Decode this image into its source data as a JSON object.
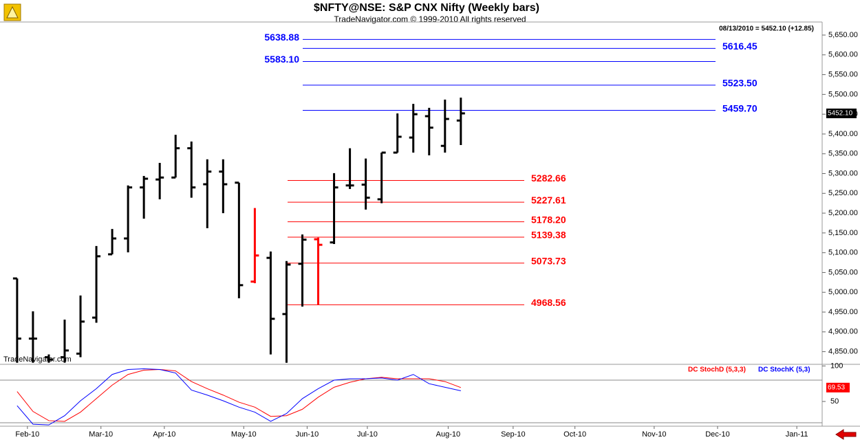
{
  "chart_data": {
    "type": "ohlc",
    "title": "$NFTY@NSE:  S&P CNX Nifty  (Weekly bars)",
    "subtitle": "TradeNavigator.com © 1999-2010 All rights reserved",
    "info": "08/13/2010 = 5452.10 (+12.85)",
    "watermark": "TradeNavigator.com",
    "last_price": {
      "value": 5452.1,
      "label": "5452.10"
    },
    "x": [
      0,
      1,
      2,
      3,
      4,
      5,
      6,
      7,
      8,
      9,
      10,
      11,
      12,
      13,
      14,
      15,
      16,
      17,
      18,
      19,
      20,
      21,
      22,
      23,
      24,
      25,
      26,
      27,
      28
    ],
    "open": [
      5035,
      4883,
      4836,
      4836,
      4845,
      4936,
      5096,
      5136,
      5265,
      5285,
      5290,
      5364,
      5273,
      5305,
      5277,
      5027,
      5087,
      4945,
      5072,
      5134,
      5126,
      5270,
      5272,
      5235,
      5353,
      5391,
      5445,
      5370,
      5434
    ],
    "high": [
      5035,
      4952,
      4843,
      4931,
      4992,
      5117,
      5160,
      5270,
      5294,
      5327,
      5398,
      5381,
      5336,
      5336,
      5277,
      5213,
      5103,
      5079,
      5146,
      5138,
      5301,
      5364,
      5338,
      5353,
      5452,
      5476,
      5466,
      5487,
      5492
    ],
    "low": [
      4822,
      4822,
      4822,
      4822,
      4836,
      4923,
      5096,
      5101,
      5186,
      5235,
      5290,
      5239,
      5162,
      5200,
      4985,
      5023,
      4843,
      4822,
      4964,
      4968,
      5122,
      5261,
      5209,
      5225,
      5353,
      5353,
      5346,
      5353,
      5372
    ],
    "close": [
      4883,
      4883,
      4830,
      4853,
      4926,
      5091,
      5136,
      5265,
      5287,
      5290,
      5364,
      5265,
      5305,
      5273,
      5018,
      5093,
      4933,
      5070,
      5133,
      5120,
      5265,
      5270,
      5239,
      5353,
      5393,
      5450,
      5416,
      5438,
      5452.1
    ],
    "colors": [
      "#000",
      "#000",
      "#000",
      "#000",
      "#000",
      "#000",
      "#000",
      "#000",
      "#000",
      "#000",
      "#000",
      "#000",
      "#000",
      "#000",
      "#000",
      "#ff0000",
      "#000",
      "#000",
      "#000",
      "#ff0000",
      "#000",
      "#000",
      "#000",
      "#000",
      "#000",
      "#000",
      "#000",
      "#000",
      "#000"
    ],
    "xlim": [
      -1.08,
      50.8
    ],
    "xticks": [
      {
        "value": 0.65,
        "label": "Feb-10"
      },
      {
        "value": 5.29,
        "label": "Mar-10"
      },
      {
        "value": 9.29,
        "label": "Apr-10"
      },
      {
        "value": 14.3,
        "label": "May-10"
      },
      {
        "value": 18.3,
        "label": "Jun-10"
      },
      {
        "value": 22.1,
        "label": "Jul-10"
      },
      {
        "value": 27.2,
        "label": "Aug-10"
      },
      {
        "value": 31.3,
        "label": "Sep-10"
      },
      {
        "value": 35.2,
        "label": "Oct-10"
      },
      {
        "value": 40.2,
        "label": "Nov-10"
      },
      {
        "value": 44.2,
        "label": "Dec-10"
      },
      {
        "value": 49.2,
        "label": "Jan-11"
      }
    ],
    "ylim": [
      4818,
      5683
    ],
    "yticks": [
      {
        "value": 5650,
        "label": "5,650.00"
      },
      {
        "value": 5600,
        "label": "5,600.00"
      },
      {
        "value": 5550,
        "label": "5,550.00"
      },
      {
        "value": 5500,
        "label": "5,500.00"
      },
      {
        "value": 5450,
        "label": "5,450.00"
      },
      {
        "value": 5400,
        "label": "5,400.00"
      },
      {
        "value": 5350,
        "label": "5,350.00"
      },
      {
        "value": 5300,
        "label": "5,300.00"
      },
      {
        "value": 5250,
        "label": "5,250.00"
      },
      {
        "value": 5200,
        "label": "5,200.00"
      },
      {
        "value": 5150,
        "label": "5,150.00"
      },
      {
        "value": 5100,
        "label": "5,100.00"
      },
      {
        "value": 5050,
        "label": "5,050.00"
      },
      {
        "value": 5000,
        "label": "5,000.00"
      },
      {
        "value": 4950,
        "label": "4,950.00"
      },
      {
        "value": 4900,
        "label": "4,900.00"
      },
      {
        "value": 4850,
        "label": "4,850.00"
      }
    ],
    "levels": [
      {
        "value": 5638.88,
        "label": "5638.88",
        "color": "#0000ff",
        "side": "left"
      },
      {
        "value": 5616.45,
        "label": "5616.45",
        "color": "#0000ff",
        "side": "right"
      },
      {
        "value": 5583.1,
        "label": "5583.10",
        "color": "#0000ff",
        "side": "left"
      },
      {
        "value": 5523.5,
        "label": "5523.50",
        "color": "#0000ff",
        "side": "right"
      },
      {
        "value": 5459.7,
        "label": "5459.70",
        "color": "#0000ff",
        "side": "right"
      },
      {
        "value": 5282.66,
        "label": "5282.66",
        "color": "#ff0000",
        "side": "right"
      },
      {
        "value": 5227.61,
        "label": "5227.61",
        "color": "#ff0000",
        "side": "right"
      },
      {
        "value": 5178.2,
        "label": "5178.20",
        "color": "#ff0000",
        "side": "right"
      },
      {
        "value": 5139.38,
        "label": "5139.38",
        "color": "#ff0000",
        "side": "right"
      },
      {
        "value": 5073.73,
        "label": "5073.73",
        "color": "#ff0000",
        "side": "right"
      },
      {
        "value": 4968.56,
        "label": "4968.56",
        "color": "#ff0000",
        "side": "right"
      }
    ],
    "indicator": {
      "y2lim": [
        15.2,
        101.3
      ],
      "y2ticks": [
        100,
        50
      ],
      "guides": [
        80,
        20
      ],
      "series": [
        {
          "name": "DC StochD (5,3,3)",
          "color": "#ff0000",
          "last_label": "69.53",
          "values": [
            64,
            36,
            23,
            22,
            35,
            54,
            73,
            88,
            94,
            95,
            93,
            78,
            68,
            59,
            49,
            42,
            29,
            30,
            39,
            56,
            70,
            77,
            82,
            84,
            82,
            82,
            82,
            78,
            69.53
          ]
        },
        {
          "name": "DC StochK (5,3)",
          "color": "#0000ff",
          "values": [
            44,
            18,
            17,
            30,
            51,
            68,
            88,
            95,
            96,
            95,
            90,
            66,
            59,
            51,
            42,
            35,
            22,
            33,
            54,
            68,
            80,
            82,
            82,
            83,
            80,
            88,
            75,
            70,
            65
          ]
        }
      ]
    }
  }
}
